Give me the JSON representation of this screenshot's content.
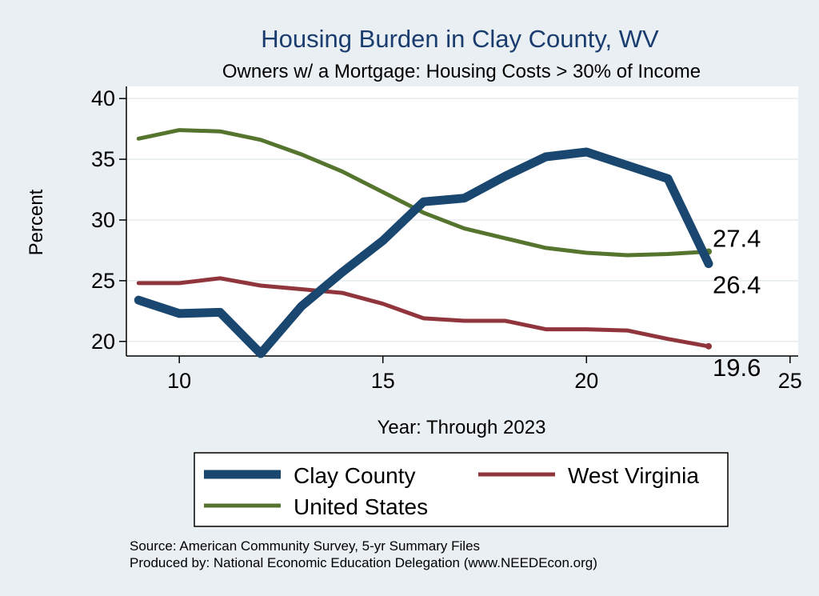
{
  "chart_data": {
    "type": "line",
    "title": "Housing Burden in Clay County, WV",
    "subtitle": "Owners w/ a Mortgage: Housing Costs > 30% of Income",
    "xlabel": "Year: Through 2023",
    "ylabel": "Percent",
    "xlim": [
      8.7,
      25.2
    ],
    "ylim": [
      18.8,
      41
    ],
    "x_ticks": [
      10,
      15,
      20,
      25
    ],
    "y_ticks": [
      20,
      25,
      30,
      35,
      40
    ],
    "grid": true,
    "legend_position": "bottom",
    "x": [
      9,
      10,
      11,
      12,
      13,
      14,
      15,
      16,
      17,
      18,
      19,
      20,
      21,
      22,
      23
    ],
    "series": [
      {
        "name": "Clay County",
        "color": "#1a476f",
        "values": [
          23.4,
          22.3,
          22.4,
          19.0,
          22.9,
          25.7,
          28.3,
          31.5,
          31.8,
          33.6,
          35.2,
          35.6,
          34.5,
          33.4,
          26.4
        ],
        "end_label": "26.4"
      },
      {
        "name": "West Virginia",
        "color": "#90353b",
        "values": [
          24.8,
          24.8,
          25.2,
          24.6,
          24.3,
          24.0,
          23.1,
          21.9,
          21.7,
          21.7,
          21.0,
          21.0,
          20.9,
          20.2,
          19.6
        ],
        "end_label": "19.6"
      },
      {
        "name": "United States",
        "color": "#55752f",
        "values": [
          36.7,
          37.4,
          37.3,
          36.6,
          35.4,
          34.0,
          32.3,
          30.6,
          29.3,
          28.5,
          27.7,
          27.3,
          27.1,
          27.2,
          27.4
        ],
        "end_label": "27.4"
      }
    ]
  },
  "footer": {
    "source": "Source: American Community Survey, 5-yr Summary Files",
    "produced_by": "Produced by: National Economic Education Delegation (www.NEEDEcon.org)"
  }
}
